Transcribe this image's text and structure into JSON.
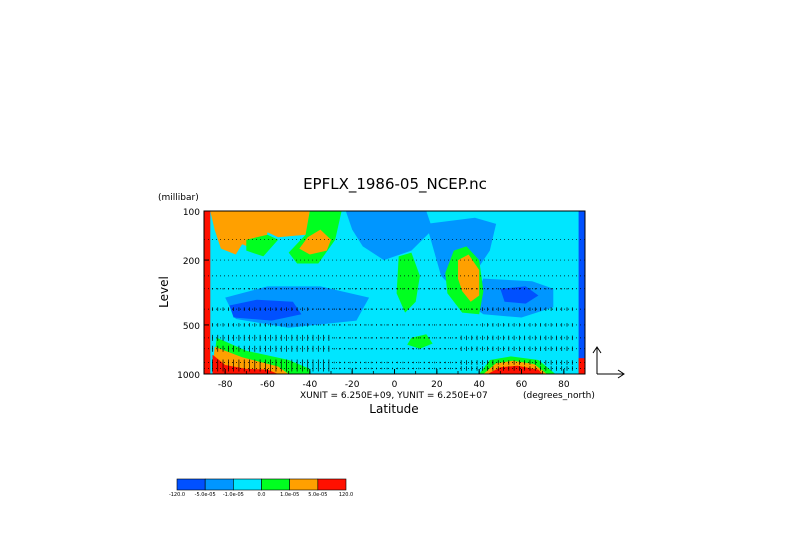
{
  "chart_data": {
    "type": "heatmap",
    "title": "EPFLX_1986-05_NCEP.nc",
    "xlabel": "Latitude",
    "ylabel": "Level",
    "x_units": "(degrees_north)",
    "y_units": "(millibar)",
    "xlim": [
      -90,
      90
    ],
    "ylim": [
      1000,
      100
    ],
    "y_scale": "log",
    "x_ticks": [
      "-80",
      "-60",
      "-40",
      "-20",
      "0",
      "20",
      "40",
      "60",
      "80"
    ],
    "x_tick_values": [
      -80,
      -60,
      -40,
      -20,
      0,
      20,
      40,
      60,
      80
    ],
    "y_ticks": [
      "100",
      "200",
      "500",
      "1000"
    ],
    "y_tick_values": [
      100,
      200,
      500,
      1000
    ],
    "grid": "dotted horizontal at pressure levels",
    "vector_units_label": "XUNIT = 6.250E+09, YUNIT = 6.250E+07",
    "colorbar": {
      "colors": [
        "#0050ff",
        "#0096ff",
        "#00e6ff",
        "#00ff20",
        "#ffa000",
        "#ff1000"
      ],
      "labels": [
        "-120.0",
        "-5.0e-05",
        "-1.0e-05",
        "0.0",
        "1.0e-05",
        "5.0e-05",
        "120.0"
      ]
    },
    "series": [
      {
        "regions": [
          {
            "level": 2,
            "pts": [
              [
                -90,
                100
              ],
              [
                90,
                100
              ],
              [
                90,
                1000
              ],
              [
                -90,
                1000
              ]
            ]
          },
          {
            "level": 4,
            "pts": [
              [
                -87,
                100
              ],
              [
                -40,
                100
              ],
              [
                -42,
                140
              ],
              [
                -55,
                145
              ],
              [
                -60,
                135
              ],
              [
                -62,
                180
              ],
              [
                -72,
                160
              ],
              [
                -75,
                185
              ],
              [
                -82,
                170
              ],
              [
                -85,
                130
              ]
            ]
          },
          {
            "level": 3,
            "pts": [
              [
                -70,
                150
              ],
              [
                -60,
                140
              ],
              [
                -55,
                150
              ],
              [
                -62,
                190
              ],
              [
                -70,
                175
              ]
            ]
          },
          {
            "level": 3,
            "pts": [
              [
                -40,
                100
              ],
              [
                -25,
                100
              ],
              [
                -28,
                150
              ],
              [
                -36,
                210
              ],
              [
                -46,
                210
              ],
              [
                -50,
                180
              ],
              [
                -42,
                140
              ]
            ]
          },
          {
            "level": 4,
            "pts": [
              [
                -41,
                145
              ],
              [
                -35,
                130
              ],
              [
                -30,
                150
              ],
              [
                -32,
                175
              ],
              [
                -40,
                185
              ],
              [
                -45,
                170
              ]
            ]
          },
          {
            "level": 1,
            "pts": [
              [
                -23,
                100
              ],
              [
                15,
                100
              ],
              [
                18,
                130
              ],
              [
                8,
                175
              ],
              [
                -5,
                200
              ],
              [
                -15,
                165
              ],
              [
                -20,
                130
              ]
            ]
          },
          {
            "level": 1,
            "pts": [
              [
                15,
                120
              ],
              [
                38,
                110
              ],
              [
                48,
                120
              ],
              [
                45,
                175
              ],
              [
                38,
                240
              ],
              [
                30,
                320
              ],
              [
                22,
                250
              ]
            ]
          },
          {
            "level": 1,
            "pts": [
              [
                -80,
                340
              ],
              [
                -60,
                290
              ],
              [
                -35,
                290
              ],
              [
                -12,
                340
              ],
              [
                -18,
                470
              ],
              [
                -50,
                520
              ],
              [
                -75,
                460
              ]
            ]
          },
          {
            "level": 0,
            "pts": [
              [
                -78,
                380
              ],
              [
                -65,
                350
              ],
              [
                -48,
                360
              ],
              [
                -44,
                430
              ],
              [
                -58,
                470
              ],
              [
                -76,
                450
              ]
            ]
          },
          {
            "level": 1,
            "pts": [
              [
                42,
                260
              ],
              [
                65,
                270
              ],
              [
                75,
                300
              ],
              [
                75,
                390
              ],
              [
                60,
                450
              ],
              [
                42,
                430
              ],
              [
                36,
                380
              ]
            ]
          },
          {
            "level": 0,
            "pts": [
              [
                50,
                300
              ],
              [
                62,
                290
              ],
              [
                68,
                330
              ],
              [
                62,
                370
              ],
              [
                52,
                360
              ]
            ]
          },
          {
            "level": 3,
            "pts": [
              [
                2,
                190
              ],
              [
                8,
                180
              ],
              [
                12,
                250
              ],
              [
                10,
                360
              ],
              [
                5,
                420
              ],
              [
                1,
                320
              ]
            ]
          },
          {
            "level": 3,
            "pts": [
              [
                28,
                175
              ],
              [
                34,
                165
              ],
              [
                40,
                200
              ],
              [
                42,
                310
              ],
              [
                40,
                430
              ],
              [
                32,
                420
              ],
              [
                25,
                320
              ],
              [
                24,
                240
              ]
            ]
          },
          {
            "level": 4,
            "pts": [
              [
                30,
                200
              ],
              [
                35,
                185
              ],
              [
                40,
                230
              ],
              [
                40,
                330
              ],
              [
                36,
                360
              ],
              [
                32,
                310
              ],
              [
                30,
                260
              ]
            ]
          },
          {
            "level": 3,
            "pts": [
              [
                8,
                600
              ],
              [
                15,
                570
              ],
              [
                18,
                650
              ],
              [
                12,
                700
              ],
              [
                6,
                660
              ]
            ]
          },
          {
            "level": 3,
            "pts": [
              [
                -84,
                600
              ],
              [
                -70,
                720
              ],
              [
                -50,
                820
              ],
              [
                -40,
                930
              ],
              [
                -40,
                1000
              ],
              [
                -86,
                1000
              ]
            ]
          },
          {
            "level": 4,
            "pts": [
              [
                -85,
                680
              ],
              [
                -72,
                790
              ],
              [
                -55,
                900
              ],
              [
                -50,
                1000
              ],
              [
                -86,
                1000
              ]
            ]
          },
          {
            "level": 5,
            "pts": [
              [
                -86,
                760
              ],
              [
                -80,
                880
              ],
              [
                -70,
                930
              ],
              [
                -60,
                940
              ],
              [
                -55,
                1000
              ],
              [
                -86,
                1000
              ]
            ]
          },
          {
            "level": 3,
            "pts": [
              [
                40,
                1000
              ],
              [
                45,
                820
              ],
              [
                55,
                780
              ],
              [
                68,
                820
              ],
              [
                76,
                1000
              ]
            ]
          },
          {
            "level": 4,
            "pts": [
              [
                42,
                1000
              ],
              [
                48,
                860
              ],
              [
                56,
                830
              ],
              [
                66,
                870
              ],
              [
                72,
                1000
              ]
            ]
          },
          {
            "level": 5,
            "pts": [
              [
                44,
                1000
              ],
              [
                50,
                910
              ],
              [
                58,
                890
              ],
              [
                68,
                940
              ],
              [
                70,
                1000
              ]
            ]
          },
          {
            "level": 5,
            "pts": [
              [
                -90,
                100
              ],
              [
                -87,
                100
              ],
              [
                -87,
                1000
              ],
              [
                -90,
                1000
              ]
            ]
          },
          {
            "level": 0,
            "pts": [
              [
                87,
                100
              ],
              [
                90,
                100
              ],
              [
                90,
                1000
              ],
              [
                87,
                1000
              ]
            ]
          },
          {
            "level": 5,
            "pts": [
              [
                87,
                800
              ],
              [
                90,
                800
              ],
              [
                90,
                1000
              ],
              [
                87,
                1000
              ]
            ]
          }
        ]
      }
    ]
  }
}
